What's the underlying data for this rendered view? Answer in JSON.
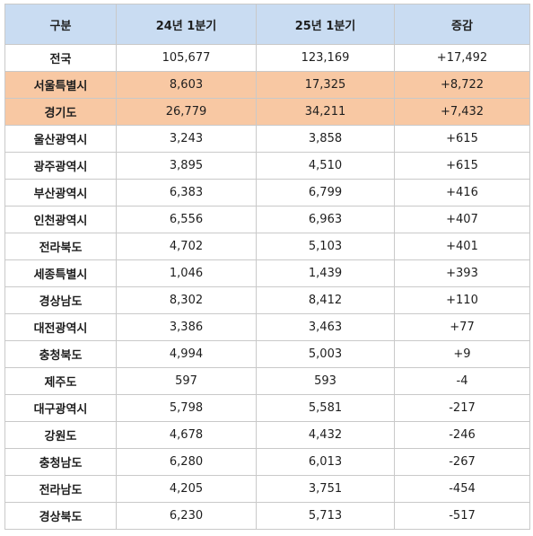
{
  "table": {
    "headers": [
      "구분",
      "24년 1분기",
      "25년 1분기",
      "증감"
    ],
    "highlight_color": "#f8c8a3",
    "header_color": "#c9dcf2",
    "rows": [
      {
        "region": "전국",
        "q1_24": "105,677",
        "q1_25": "123,169",
        "change": "+17,492",
        "highlighted": false
      },
      {
        "region": "서울특별시",
        "q1_24": "8,603",
        "q1_25": "17,325",
        "change": "+8,722",
        "highlighted": true
      },
      {
        "region": "경기도",
        "q1_24": "26,779",
        "q1_25": "34,211",
        "change": "+7,432",
        "highlighted": true
      },
      {
        "region": "울산광역시",
        "q1_24": "3,243",
        "q1_25": "3,858",
        "change": "+615",
        "highlighted": false
      },
      {
        "region": "광주광역시",
        "q1_24": "3,895",
        "q1_25": "4,510",
        "change": "+615",
        "highlighted": false
      },
      {
        "region": "부산광역시",
        "q1_24": "6,383",
        "q1_25": "6,799",
        "change": "+416",
        "highlighted": false
      },
      {
        "region": "인천광역시",
        "q1_24": "6,556",
        "q1_25": "6,963",
        "change": "+407",
        "highlighted": false
      },
      {
        "region": "전라북도",
        "q1_24": "4,702",
        "q1_25": "5,103",
        "change": "+401",
        "highlighted": false
      },
      {
        "region": "세종특별시",
        "q1_24": "1,046",
        "q1_25": "1,439",
        "change": "+393",
        "highlighted": false
      },
      {
        "region": "경상남도",
        "q1_24": "8,302",
        "q1_25": "8,412",
        "change": "+110",
        "highlighted": false
      },
      {
        "region": "대전광역시",
        "q1_24": "3,386",
        "q1_25": "3,463",
        "change": "+77",
        "highlighted": false
      },
      {
        "region": "충청북도",
        "q1_24": "4,994",
        "q1_25": "5,003",
        "change": "+9",
        "highlighted": false
      },
      {
        "region": "제주도",
        "q1_24": "597",
        "q1_25": "593",
        "change": "-4",
        "highlighted": false
      },
      {
        "region": "대구광역시",
        "q1_24": "5,798",
        "q1_25": "5,581",
        "change": "-217",
        "highlighted": false
      },
      {
        "region": "강원도",
        "q1_24": "4,678",
        "q1_25": "4,432",
        "change": "-246",
        "highlighted": false
      },
      {
        "region": "충청남도",
        "q1_24": "6,280",
        "q1_25": "6,013",
        "change": "-267",
        "highlighted": false
      },
      {
        "region": "전라남도",
        "q1_24": "4,205",
        "q1_25": "3,751",
        "change": "-454",
        "highlighted": false
      },
      {
        "region": "경상북도",
        "q1_24": "6,230",
        "q1_25": "5,713",
        "change": "-517",
        "highlighted": false
      }
    ]
  }
}
